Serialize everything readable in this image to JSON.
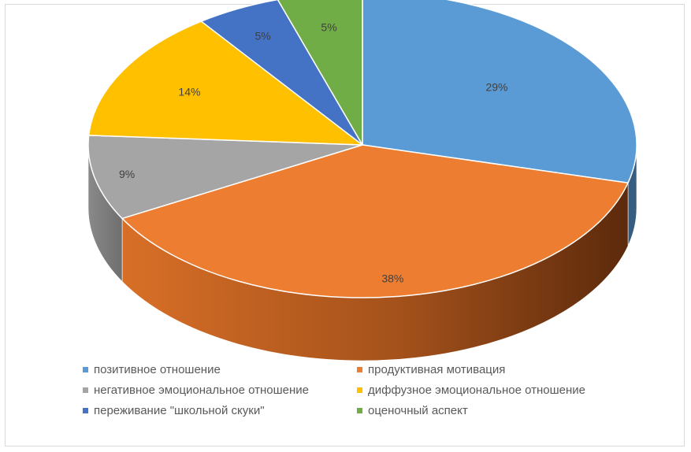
{
  "chart_data": {
    "type": "pie",
    "style": "3d",
    "categories": [
      "позитивное отношение",
      "продуктивная мотивация",
      "негативное эмоциональное отношение",
      "диффузное эмоциональное отношение",
      "переживание \"школьной скуки\"",
      "оценочный аспект"
    ],
    "values": [
      29,
      38,
      9,
      14,
      5,
      5
    ],
    "data_labels": [
      "29%",
      "38%",
      "9%",
      "14%",
      "5%",
      "5%"
    ],
    "colors": [
      "#5B9BD5",
      "#ED7D31",
      "#A5A5A5",
      "#FFC000",
      "#4472C4",
      "#70AD47"
    ],
    "legend_position": "bottom"
  }
}
